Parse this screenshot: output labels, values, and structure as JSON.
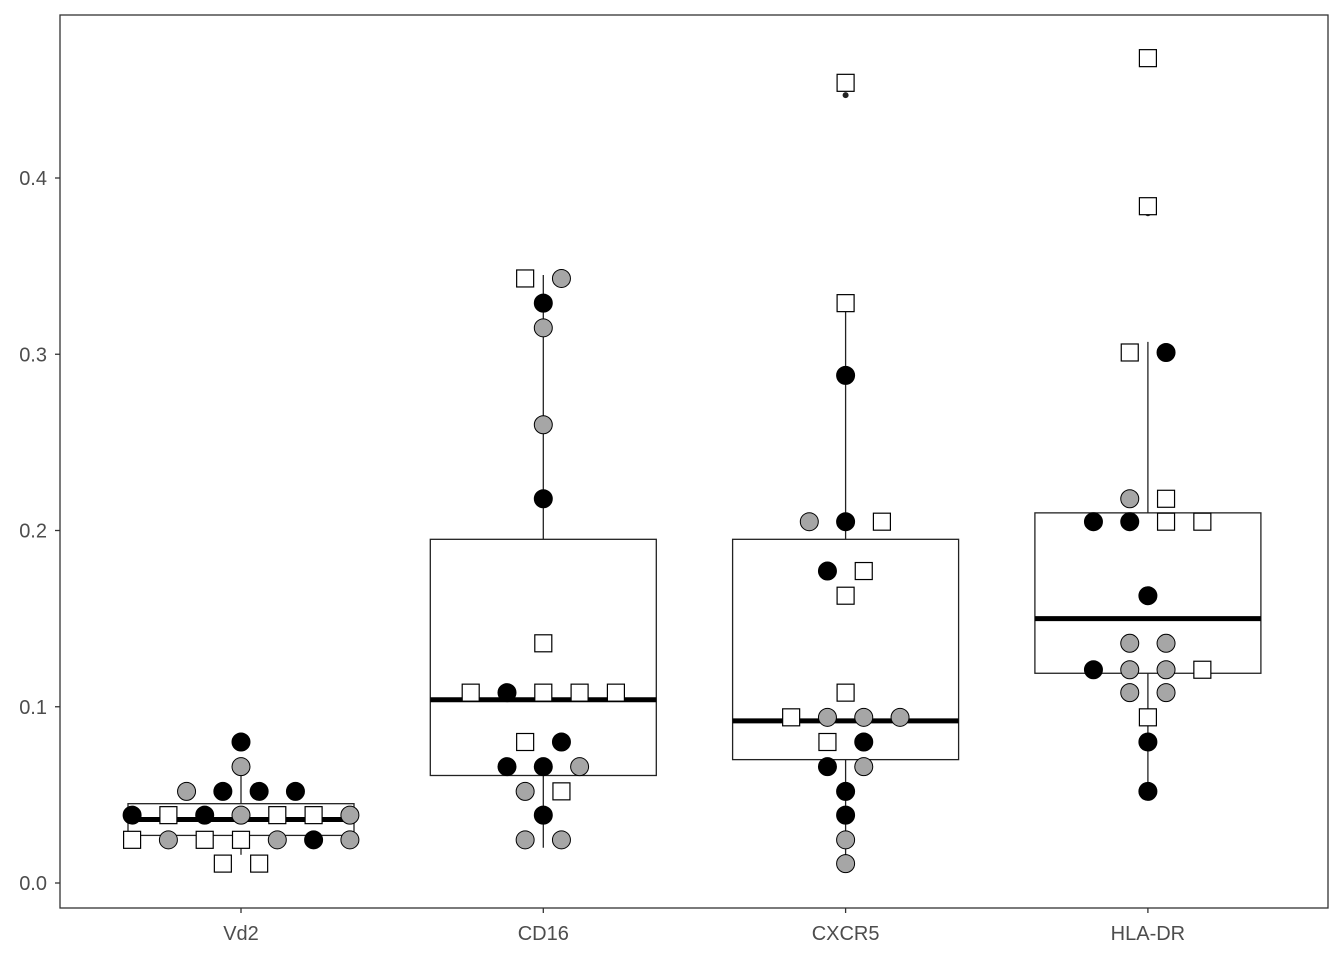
{
  "chart_data": {
    "type": "box",
    "title": "",
    "xlabel": "",
    "ylabel": "",
    "ylim": [
      -0.015,
      0.492
    ],
    "yticks": [
      0.0,
      0.1,
      0.2,
      0.3,
      0.4
    ],
    "ytick_labels": [
      "0.0",
      "0.1",
      "0.2",
      "0.3",
      "0.4"
    ],
    "grid": false,
    "categories": [
      "Vd2",
      "CD16",
      "CXCR5",
      "HLA-DR"
    ],
    "colors": {
      "black": "#000000",
      "gray": "#a6a6a6",
      "square": "#ffffff"
    },
    "boxes": [
      {
        "q1": 0.027,
        "median": 0.036,
        "q3": 0.045,
        "whisker_low": 0.016,
        "whisker_high": 0.061,
        "outliers": []
      },
      {
        "q1": 0.061,
        "median": 0.104,
        "q3": 0.195,
        "whisker_low": 0.02,
        "whisker_high": 0.345,
        "outliers": []
      },
      {
        "q1": 0.07,
        "median": 0.092,
        "q3": 0.195,
        "whisker_low": 0.013,
        "whisker_high": 0.329,
        "outliers": [
          0.447
        ]
      },
      {
        "q1": 0.119,
        "median": 0.15,
        "q3": 0.21,
        "whisker_low": 0.052,
        "whisker_high": 0.307,
        "outliers": [
          0.38
        ]
      }
    ],
    "points": [
      [
        {
          "y": 0.08,
          "types": [
            "black"
          ]
        },
        {
          "y": 0.066,
          "types": [
            "gray"
          ]
        },
        {
          "y": 0.052,
          "types": [
            "gray",
            "black",
            "black",
            "black"
          ]
        },
        {
          "y": 0.0385,
          "types": [
            "black",
            "square",
            "black",
            "gray",
            "square",
            "square",
            "gray"
          ]
        },
        {
          "y": 0.0245,
          "types": [
            "square",
            "gray",
            "square",
            "square",
            "gray",
            "black",
            "gray"
          ]
        },
        {
          "y": 0.011,
          "types": [
            "square",
            "square"
          ]
        }
      ],
      [
        {
          "y": 0.343,
          "types": [
            "square",
            "gray"
          ]
        },
        {
          "y": 0.329,
          "types": [
            "black"
          ]
        },
        {
          "y": 0.315,
          "types": [
            "gray"
          ]
        },
        {
          "y": 0.26,
          "types": [
            "gray"
          ]
        },
        {
          "y": 0.218,
          "types": [
            "black"
          ]
        },
        {
          "y": 0.136,
          "types": [
            "square"
          ]
        },
        {
          "y": 0.108,
          "types": [
            "square",
            "black",
            "square",
            "square",
            "square"
          ]
        },
        {
          "y": 0.08,
          "types": [
            "square",
            "black"
          ]
        },
        {
          "y": 0.066,
          "types": [
            "black",
            "black",
            "gray"
          ]
        },
        {
          "y": 0.052,
          "types": [
            "gray",
            "square"
          ]
        },
        {
          "y": 0.0385,
          "types": [
            "black"
          ]
        },
        {
          "y": 0.0245,
          "types": [
            "gray",
            "gray"
          ]
        }
      ],
      [
        {
          "y": 0.454,
          "types": [
            "square"
          ]
        },
        {
          "y": 0.329,
          "types": [
            "square"
          ]
        },
        {
          "y": 0.288,
          "types": [
            "black"
          ]
        },
        {
          "y": 0.205,
          "types": [
            "gray",
            "black",
            "square"
          ]
        },
        {
          "y": 0.177,
          "types": [
            "black",
            "square"
          ]
        },
        {
          "y": 0.163,
          "types": [
            "square"
          ]
        },
        {
          "y": 0.108,
          "types": [
            "square"
          ]
        },
        {
          "y": 0.094,
          "types": [
            "square",
            "gray",
            "gray",
            "gray"
          ]
        },
        {
          "y": 0.08,
          "types": [
            "square",
            "black"
          ]
        },
        {
          "y": 0.066,
          "types": [
            "black",
            "gray"
          ]
        },
        {
          "y": 0.052,
          "types": [
            "black"
          ]
        },
        {
          "y": 0.0385,
          "types": [
            "black"
          ]
        },
        {
          "y": 0.0245,
          "types": [
            "gray"
          ]
        },
        {
          "y": 0.011,
          "types": [
            "gray"
          ]
        }
      ],
      [
        {
          "y": 0.468,
          "types": [
            "square"
          ]
        },
        {
          "y": 0.384,
          "types": [
            "square"
          ]
        },
        {
          "y": 0.301,
          "types": [
            "square",
            "black"
          ]
        },
        {
          "y": 0.218,
          "types": [
            "gray",
            "square"
          ]
        },
        {
          "y": 0.205,
          "types": [
            "black",
            "black",
            "square",
            "square"
          ]
        },
        {
          "y": 0.163,
          "types": [
            "black"
          ]
        },
        {
          "y": 0.136,
          "types": [
            "gray",
            "gray"
          ]
        },
        {
          "y": 0.121,
          "types": [
            "black",
            "gray",
            "gray",
            "square"
          ]
        },
        {
          "y": 0.108,
          "types": [
            "gray",
            "gray"
          ]
        },
        {
          "y": 0.094,
          "types": [
            "square"
          ]
        },
        {
          "y": 0.08,
          "types": [
            "black"
          ]
        },
        {
          "y": 0.052,
          "types": [
            "black"
          ]
        }
      ]
    ]
  }
}
